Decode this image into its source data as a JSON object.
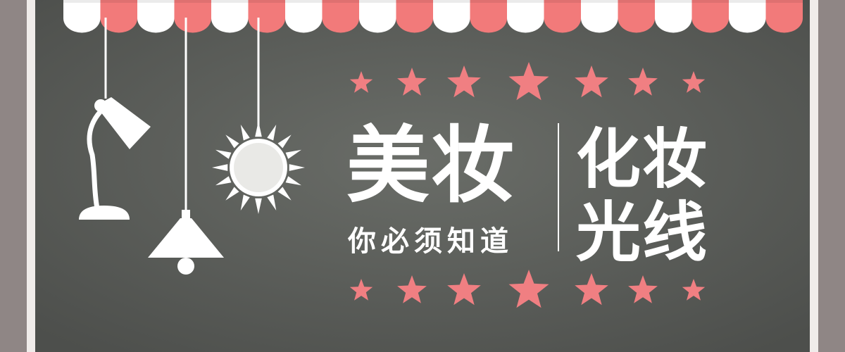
{
  "banner": {
    "title_main": "美妆",
    "subtitle": "你必须知道",
    "title_right_line1": "化妆",
    "title_right_line2": "光线"
  },
  "colors": {
    "frame": "#8f8685",
    "board_center": "#686a66",
    "board_edge": "#4e504d",
    "board_border": "#f0ecea",
    "awning_pink": "#f27a7a",
    "awning_white": "#ffffff",
    "star_pink": "#f07f82",
    "lamp_white": "#ffffff"
  },
  "icons": {
    "lamps": [
      "desk-lamp-icon",
      "sun-lamp-icon",
      "pendant-lamp-icon"
    ],
    "stars": "star-icon"
  }
}
